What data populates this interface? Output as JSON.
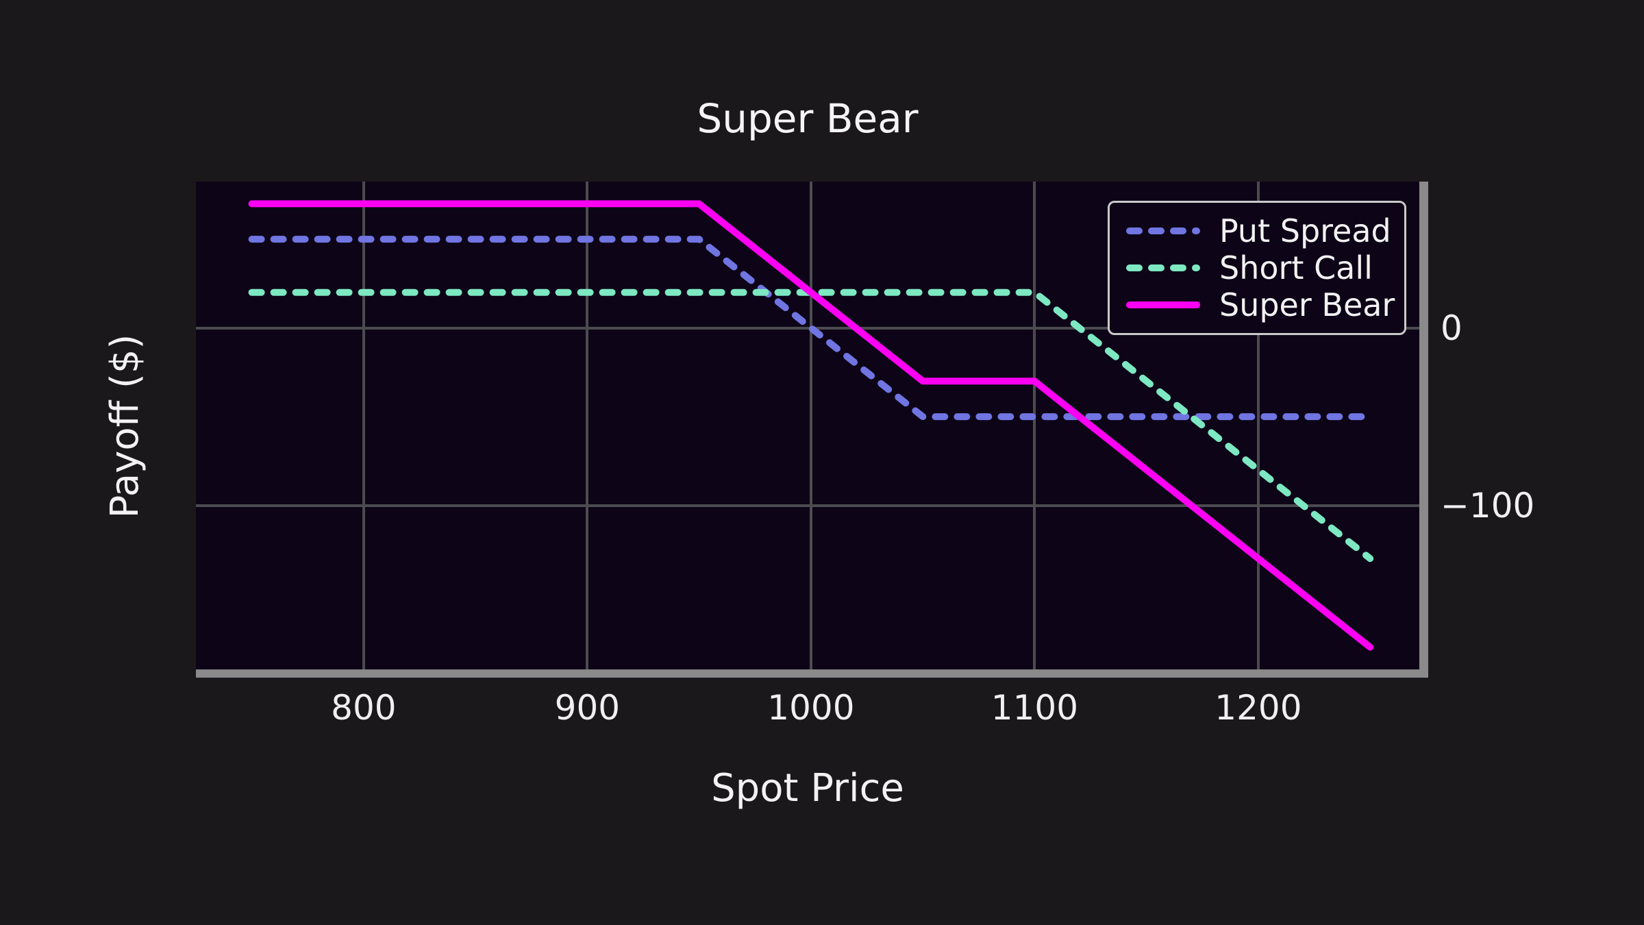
{
  "figure": {
    "background": "#1b181c",
    "plot_background": "#0d0517",
    "grid_color": "#4b4b50",
    "spine_color": "#8a8a8a",
    "text_color": "#f2f2f2"
  },
  "chart_data": {
    "type": "line",
    "title": "Super Bear",
    "xlabel": "Spot Price",
    "ylabel": "Payoff ($)",
    "xlim": [
      725,
      1272
    ],
    "ylim": [
      -192.5,
      82.5
    ],
    "grid": true,
    "legend_position": "upper right",
    "xticks": [
      800,
      900,
      1000,
      1100,
      1200
    ],
    "xtick_labels": [
      "800",
      "900",
      "1000",
      "1100",
      "1200"
    ],
    "yticks": [
      0,
      -100
    ],
    "ytick_labels": [
      "0",
      "−100"
    ],
    "x": [
      750,
      950,
      1050,
      1100,
      1250
    ],
    "series": [
      {
        "name": "Put Spread",
        "color": "#7075e2",
        "style": "dashed",
        "values": [
          50,
          50,
          -50,
          -50,
          -50
        ]
      },
      {
        "name": "Short Call",
        "color": "#7de8c2",
        "style": "dashed",
        "values": [
          20,
          20,
          20,
          20,
          -130
        ]
      },
      {
        "name": "Super Bear",
        "color": "#fb00f2",
        "style": "solid",
        "values": [
          70,
          70,
          -30,
          -30,
          -180
        ]
      }
    ]
  }
}
